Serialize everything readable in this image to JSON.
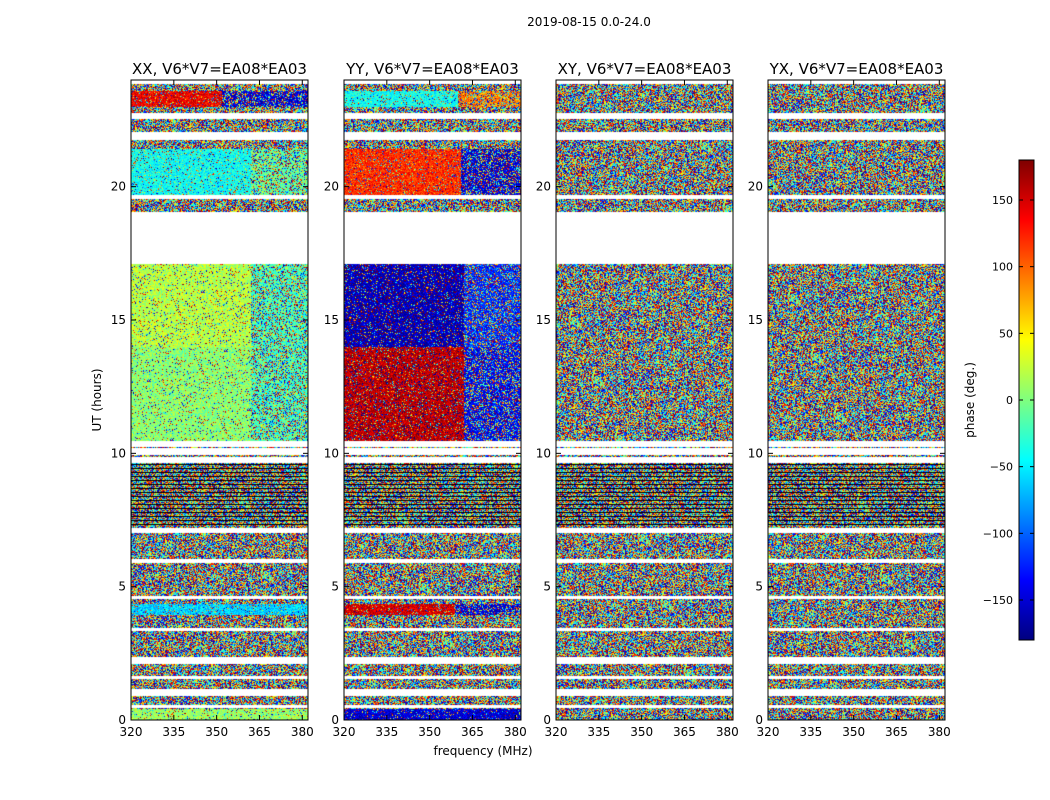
{
  "figure_title": "2019-08-15 0.0-24.0",
  "colorbar": {
    "label": "phase (deg.)",
    "range": [
      -180,
      180
    ],
    "ticks": [
      150,
      100,
      50,
      0,
      -50,
      -100,
      -150
    ],
    "tick_labels": [
      "150",
      "100",
      "50",
      "0",
      "−50",
      "−100",
      "−150"
    ],
    "colormap": "jet",
    "colors": [
      "#00007f",
      "#0000ff",
      "#007fff",
      "#00ffff",
      "#7fff7f",
      "#ffff00",
      "#ff7f00",
      "#ff0000",
      "#7f0000"
    ]
  },
  "chart_data": [
    {
      "type": "heatmap",
      "title": "XX, V6*V7=EA08*EA03",
      "xlabel": "",
      "ylabel": "UT (hours)",
      "xlim": [
        320,
        382
      ],
      "ylim": [
        0,
        24
      ],
      "xticks": [
        320,
        335,
        350,
        365,
        380
      ],
      "yticks": [
        0,
        5,
        10,
        15,
        20
      ],
      "value": "phase (deg.)",
      "coherent_bands": [
        {
          "t0": 23.0,
          "t1": 23.6,
          "f_split": 352,
          "phase_low": 140,
          "phase_high": -150
        },
        {
          "t0": 19.7,
          "t1": 21.4,
          "f_split": 362,
          "phase_low": -40,
          "phase_high": -10
        },
        {
          "t0": 14.0,
          "t1": 17.1,
          "f_split": 362,
          "phase_low": 20,
          "phase_high": -20
        },
        {
          "t0": 10.3,
          "t1": 14.0,
          "f_split": 362,
          "phase_low": 5,
          "phase_high": -20
        },
        {
          "t0": 3.95,
          "t1": 4.35,
          "f_split": 382,
          "phase_low": -60,
          "phase_high": -60
        },
        {
          "t0": 0.0,
          "t1": 0.4,
          "f_split": 382,
          "phase_low": 10,
          "phase_high": 10
        }
      ]
    },
    {
      "type": "heatmap",
      "title": "YY, V6*V7=EA08*EA03",
      "xlabel": "frequency (MHz)",
      "ylabel": "",
      "xlim": [
        320,
        382
      ],
      "ylim": [
        0,
        24
      ],
      "xticks": [
        320,
        335,
        350,
        365,
        380
      ],
      "yticks": [
        0,
        5,
        10,
        15,
        20
      ],
      "value": "phase (deg.)",
      "coherent_bands": [
        {
          "t0": 23.0,
          "t1": 23.6,
          "f_split": 360,
          "phase_low": -40,
          "phase_high": 90
        },
        {
          "t0": 19.7,
          "t1": 21.4,
          "f_split": 361,
          "phase_low": 120,
          "phase_high": -150
        },
        {
          "t0": 14.0,
          "t1": 17.1,
          "f_split": 362,
          "phase_low": -160,
          "phase_high": -120
        },
        {
          "t0": 10.3,
          "t1": 14.0,
          "f_split": 362,
          "phase_low": 160,
          "phase_high": -140
        },
        {
          "t0": 3.95,
          "t1": 4.35,
          "f_split": 359,
          "phase_low": 150,
          "phase_high": -150
        },
        {
          "t0": 0.0,
          "t1": 0.4,
          "f_split": 382,
          "phase_low": -150,
          "phase_high": -150
        }
      ]
    },
    {
      "type": "heatmap",
      "title": "XY, V6*V7=EA08*EA03",
      "xlabel": "",
      "ylabel": "",
      "xlim": [
        320,
        382
      ],
      "ylim": [
        0,
        24
      ],
      "xticks": [
        320,
        335,
        350,
        365,
        380
      ],
      "yticks": [
        0,
        5,
        10,
        15,
        20
      ],
      "value": "phase (deg.)",
      "coherent_bands": []
    },
    {
      "type": "heatmap",
      "title": "YX, V6*V7=EA08*EA03",
      "xlabel": "",
      "ylabel": "",
      "xlim": [
        320,
        382
      ],
      "ylim": [
        0,
        24
      ],
      "xticks": [
        320,
        335,
        350,
        365,
        380
      ],
      "yticks": [
        0,
        5,
        10,
        15,
        20
      ],
      "value": "phase (deg.)",
      "coherent_bands": []
    }
  ],
  "gaps_hours": [
    [
      23.85,
      24.0
    ],
    [
      22.55,
      22.75
    ],
    [
      21.75,
      22.05
    ],
    [
      18.2,
      19.05
    ],
    [
      19.55,
      19.7
    ],
    [
      17.1,
      18.2
    ],
    [
      10.25,
      10.45
    ],
    [
      9.95,
      10.2
    ],
    [
      9.65,
      9.85
    ],
    [
      7.0,
      7.2
    ],
    [
      5.9,
      6.05
    ],
    [
      4.55,
      4.65
    ],
    [
      3.35,
      3.45
    ],
    [
      2.1,
      2.35
    ],
    [
      1.55,
      1.65
    ],
    [
      0.9,
      1.15
    ],
    [
      0.45,
      0.55
    ]
  ]
}
